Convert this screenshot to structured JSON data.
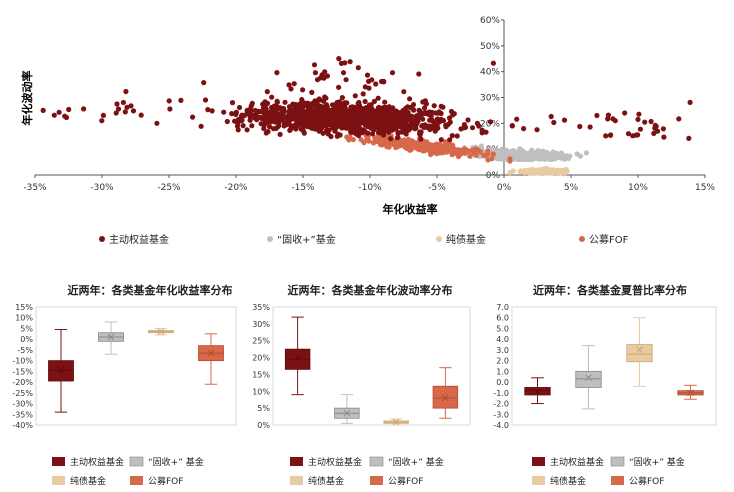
{
  "colors": {
    "equity": "#7b1113",
    "fixed_plus": "#bfbfbf",
    "bond": "#e8cba2",
    "fof": "#d8684a",
    "grid": "#d9d9d9",
    "axis": "#555555"
  },
  "chart_data": [
    {
      "type": "scatter",
      "title": "",
      "xlabel": "年化收益率",
      "ylabel": "年化波动率",
      "xlim": [
        -35,
        15
      ],
      "ylim": [
        0,
        60
      ],
      "x_ticks": [
        "-35%",
        "-30%",
        "-25%",
        "-20%",
        "-15%",
        "-10%",
        "-5%",
        "0%",
        "5%",
        "10%",
        "15%"
      ],
      "y_ticks": [
        "0%",
        "10%",
        "20%",
        "30%",
        "40%",
        "50%",
        "60%"
      ],
      "legend": [
        "主动权益基金",
        "“固收+”基金",
        "纯债基金",
        "公募FOF"
      ],
      "series": [
        {
          "name": "主动权益基金",
          "key": "equity",
          "x_range": [
            -35,
            14.5
          ],
          "y_center": 24,
          "y_spread": 18,
          "slope": -0.18,
          "count": 1300
        },
        {
          "name": "“固收+”基金",
          "key": "fixed_plus",
          "x_range": [
            -12,
            8
          ],
          "y_center": 7,
          "y_spread": 6,
          "slope": -0.2,
          "count": 500
        },
        {
          "name": "纯债基金",
          "key": "bond",
          "x_range": [
            -3,
            7
          ],
          "y_center": 1.5,
          "y_spread": 1.5,
          "slope": 0,
          "count": 250
        },
        {
          "name": "公募FOF",
          "key": "fof",
          "x_range": [
            -18,
            3
          ],
          "y_center": 8,
          "y_spread": 6,
          "slope": -0.35,
          "count": 300
        }
      ]
    },
    {
      "type": "boxplot",
      "title": "近两年：各类基金年化收益率分布",
      "ylim": [
        -40,
        15
      ],
      "y_ticks": [
        "-40%",
        "-35%",
        "-30%",
        "-25%",
        "-20%",
        "-15%",
        "-10%",
        "-5%",
        "0%",
        "5%",
        "10%",
        "15%"
      ],
      "series": [
        {
          "name": "主动权益基金",
          "key": "equity",
          "min": -34,
          "q1": -19.5,
          "median": -14.5,
          "q3": -10,
          "max": 4.5,
          "mean": -14.5
        },
        {
          "name": "“固收+”基金",
          "key": "fixed_plus",
          "min": -7,
          "q1": -1,
          "median": 1,
          "q3": 3,
          "max": 8,
          "mean": 1
        },
        {
          "name": "纯债基金",
          "key": "bond",
          "min": 2,
          "q1": 3,
          "median": 3.5,
          "q3": 4,
          "max": 5,
          "mean": 3.5
        },
        {
          "name": "公募FOF",
          "key": "fof",
          "min": -21,
          "q1": -10,
          "median": -6.5,
          "q3": -3,
          "max": 2.5,
          "mean": -6.5
        }
      ],
      "legend": [
        "主动权益基金",
        "“固收+” 基金",
        "纯债基金",
        "公募FOF"
      ]
    },
    {
      "type": "boxplot",
      "title": "近两年：各类基金年化波动率分布",
      "ylim": [
        0,
        35
      ],
      "y_ticks": [
        "0%",
        "5%",
        "10%",
        "15%",
        "20%",
        "25%",
        "30%",
        "35%"
      ],
      "series": [
        {
          "name": "主动权益基金",
          "key": "equity",
          "min": 9,
          "q1": 16.5,
          "median": 19.5,
          "q3": 22.5,
          "max": 32,
          "mean": 20
        },
        {
          "name": "“固收+”基金",
          "key": "fixed_plus",
          "min": 0.5,
          "q1": 2,
          "median": 3.5,
          "q3": 5,
          "max": 9,
          "mean": 3.5
        },
        {
          "name": "纯债基金",
          "key": "bond",
          "min": 0,
          "q1": 0.5,
          "median": 0.8,
          "q3": 1.2,
          "max": 1.8,
          "mean": 0.9
        },
        {
          "name": "公募FOF",
          "key": "fof",
          "min": 2,
          "q1": 5,
          "median": 8,
          "q3": 11.5,
          "max": 17,
          "mean": 8
        }
      ],
      "legend": [
        "主动权益基金",
        "“固收+” 基金",
        "纯债基金",
        "公募FOF"
      ]
    },
    {
      "type": "boxplot",
      "title": "近两年：各类基金夏普比率分布",
      "ylim": [
        -4,
        7
      ],
      "y_ticks": [
        "-4.0",
        "-3.0",
        "-2.0",
        "-1.0",
        "0.0",
        "1.0",
        "2.0",
        "3.0",
        "4.0",
        "5.0",
        "6.0",
        "7.0"
      ],
      "series": [
        {
          "name": "主动权益基金",
          "key": "equity",
          "min": -2,
          "q1": -1.2,
          "median": -0.8,
          "q3": -0.5,
          "max": 0.4,
          "mean": -0.9
        },
        {
          "name": "“固收+”基金",
          "key": "fixed_plus",
          "min": -2.5,
          "q1": -0.5,
          "median": 0.3,
          "q3": 1,
          "max": 3.4,
          "mean": 0.4
        },
        {
          "name": "纯债基金",
          "key": "bond",
          "min": -0.4,
          "q1": 1.9,
          "median": 2.6,
          "q3": 3.5,
          "max": 6,
          "mean": 3
        },
        {
          "name": "公募FOF",
          "key": "fof",
          "min": -1.6,
          "q1": -1.2,
          "median": -1,
          "q3": -0.8,
          "max": -0.3,
          "mean": -1
        }
      ],
      "legend": [
        "主动权益基金",
        "“固收+” 基金",
        "纯债基金",
        "公募FOF"
      ]
    }
  ]
}
